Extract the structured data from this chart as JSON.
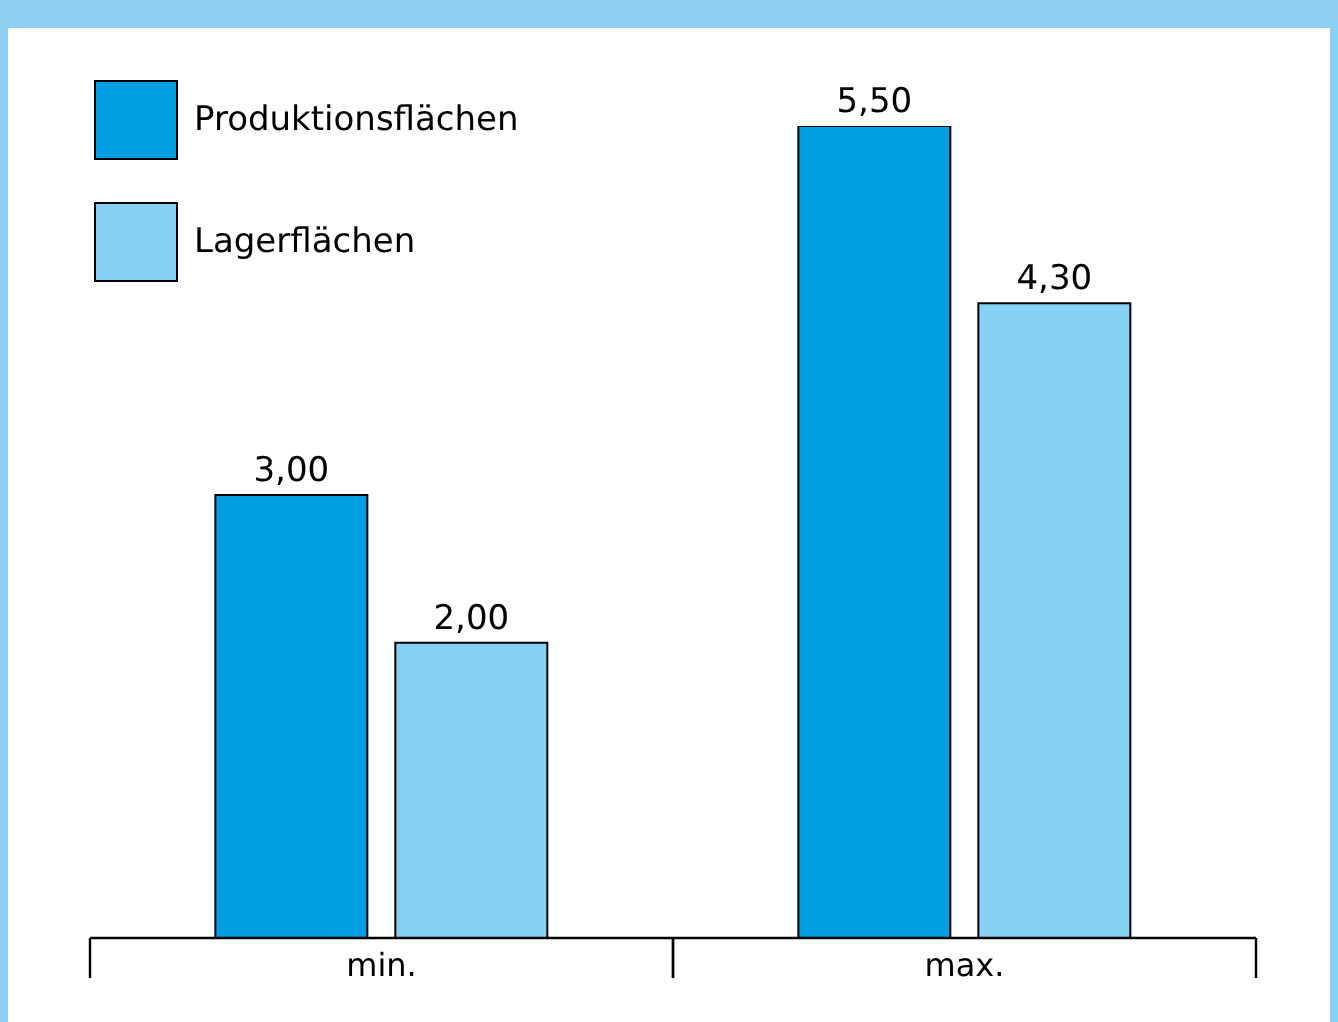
{
  "chart_data": {
    "type": "bar",
    "categories": [
      "min.",
      "max."
    ],
    "series": [
      {
        "name": "Produktionsflächen",
        "color": "#009fe3",
        "values": [
          3.0,
          5.5
        ],
        "value_labels": [
          "3,00",
          "5,50"
        ]
      },
      {
        "name": "Lagerflächen",
        "color": "#84d1f5",
        "values": [
          2.0,
          4.3
        ],
        "value_labels": [
          "2,00",
          "4,30"
        ]
      }
    ],
    "tick_labels": "x",
    "legend": "top left",
    "grid": false
  }
}
